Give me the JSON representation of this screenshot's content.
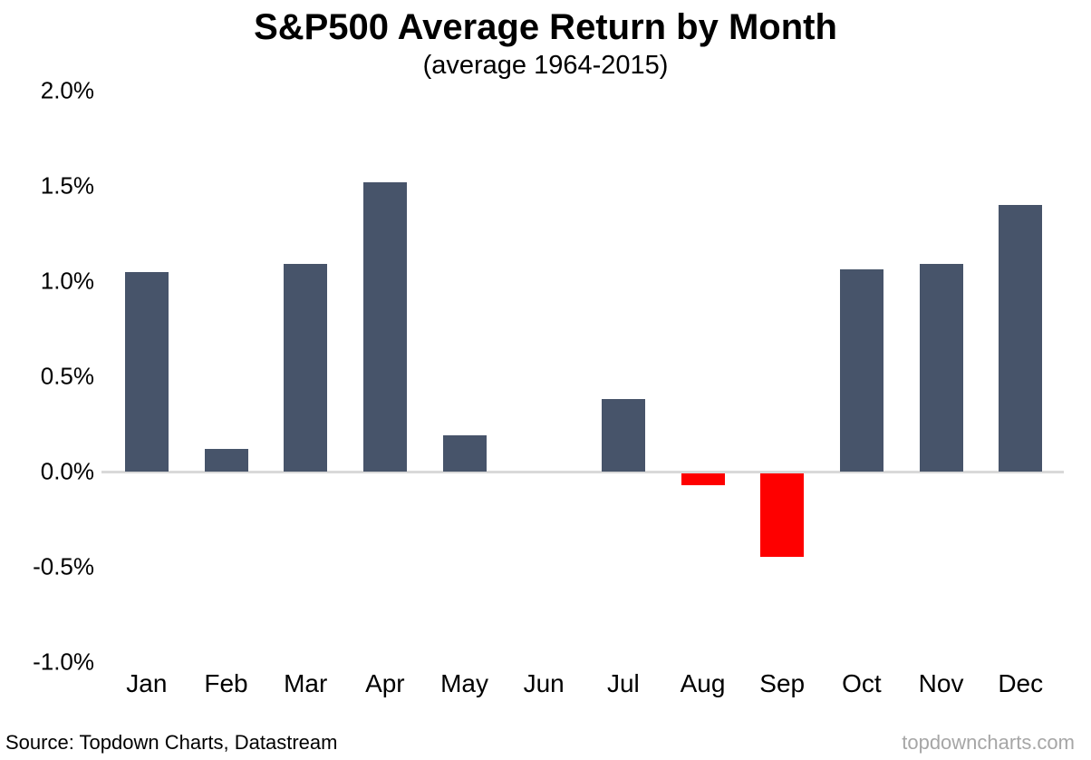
{
  "chart": {
    "title": "S&P500 Average Return by Month",
    "subtitle": "(average 1964-2015)"
  },
  "footer": {
    "source": "Source: Topdown Charts, Datastream",
    "watermark": "topdowncharts.com"
  },
  "chart_data": {
    "type": "bar",
    "title": "S&P500 Average Return by Month",
    "subtitle": "(average 1964-2015)",
    "categories": [
      "Jan",
      "Feb",
      "Mar",
      "Apr",
      "May",
      "Jun",
      "Jul",
      "Aug",
      "Sep",
      "Oct",
      "Nov",
      "Dec"
    ],
    "values": [
      1.05,
      0.12,
      1.09,
      1.52,
      0.19,
      0.0,
      0.38,
      -0.06,
      -0.44,
      1.06,
      1.09,
      1.4
    ],
    "unit": "%",
    "xlabel": "",
    "ylabel": "",
    "ylim": [
      -1.0,
      2.0
    ],
    "yticks": [
      2.0,
      1.5,
      1.0,
      0.5,
      0.0,
      -0.5,
      -1.0
    ],
    "ytick_labels": [
      "2.0%",
      "1.5%",
      "1.0%",
      "0.5%",
      "0.0%",
      "-0.5%",
      "-1.0%"
    ],
    "grid": false,
    "legend": "none",
    "colors": {
      "positive": "#47546a",
      "negative": "#fe0000",
      "zero_line": "#d9d9d9"
    }
  }
}
